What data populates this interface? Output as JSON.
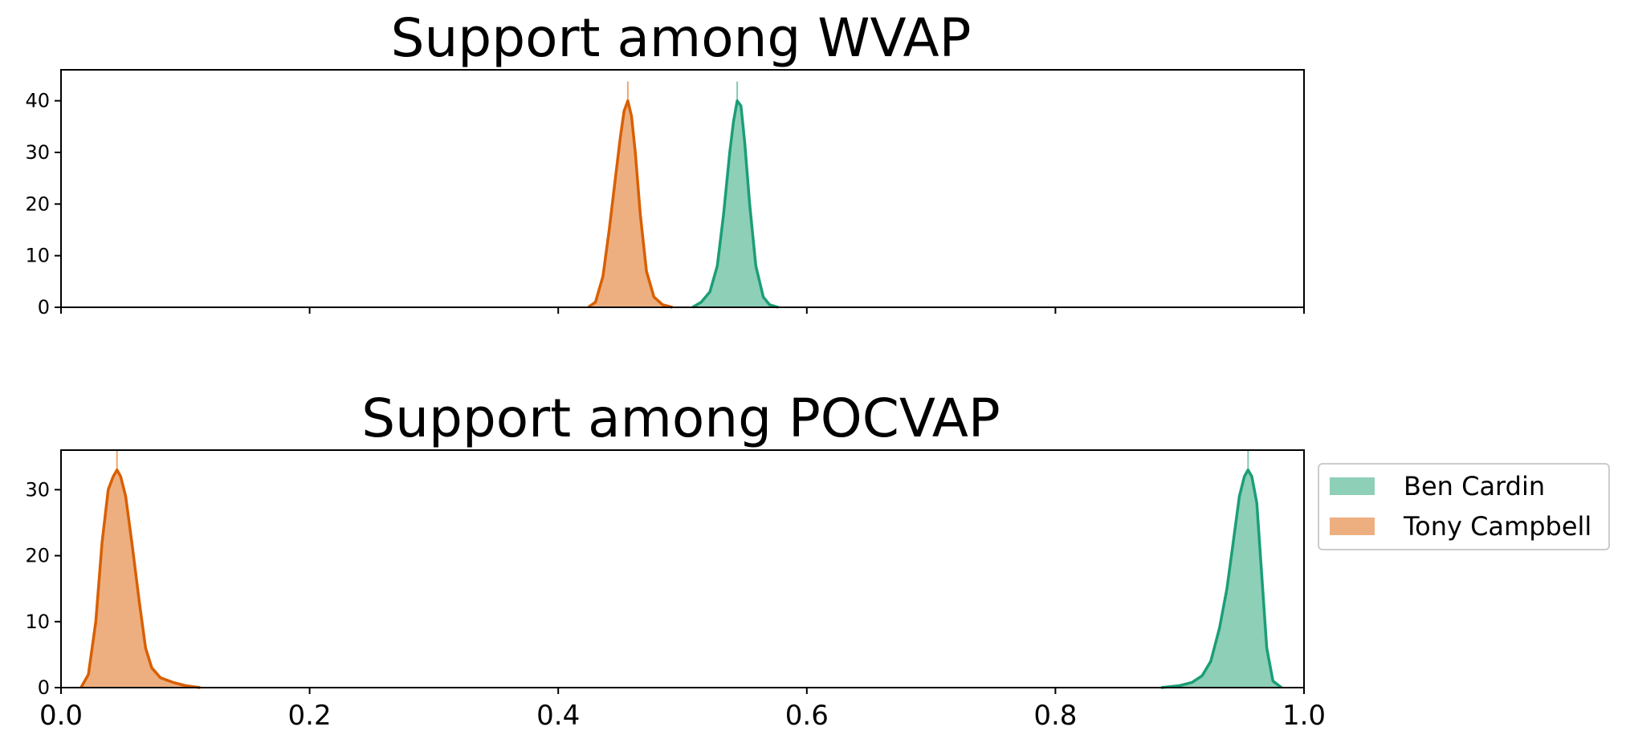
{
  "colors": {
    "ben_cardin_fill": "#8ecfb8",
    "ben_cardin_line": "#1b9e77",
    "tony_campbell_fill": "#edaf80",
    "tony_campbell_line": "#d95f02"
  },
  "legend": {
    "placement": "right of lower panel",
    "items": [
      {
        "label": "Ben Cardin",
        "color_key": "ben_cardin"
      },
      {
        "label": "Tony Campbell",
        "color_key": "tony_campbell"
      }
    ]
  },
  "chart_data": [
    {
      "type": "area",
      "title": "Support among WVAP",
      "xlim": [
        0.0,
        1.0
      ],
      "ylim": [
        0,
        46
      ],
      "x_ticks": [
        "",
        "",
        "",
        "",
        "",
        ""
      ],
      "y_ticks": [
        "0",
        "10",
        "20",
        "30",
        "40"
      ],
      "grid": false,
      "series": [
        {
          "name": "Ben Cardin",
          "color_key": "ben_cardin",
          "x": [
            0.508,
            0.515,
            0.522,
            0.528,
            0.533,
            0.538,
            0.541,
            0.544,
            0.547,
            0.55,
            0.554,
            0.559,
            0.565,
            0.57,
            0.577
          ],
          "y": [
            0,
            1,
            3,
            8,
            18,
            30,
            36,
            40,
            39,
            32,
            20,
            8,
            2,
            0.5,
            0
          ]
        },
        {
          "name": "Tony Campbell",
          "color_key": "tony_campbell",
          "x": [
            0.424,
            0.43,
            0.436,
            0.441,
            0.446,
            0.45,
            0.453,
            0.456,
            0.459,
            0.462,
            0.466,
            0.471,
            0.477,
            0.484,
            0.492
          ],
          "y": [
            0,
            1,
            6,
            15,
            25,
            33,
            38,
            40,
            37,
            30,
            18,
            7,
            2,
            0.5,
            0
          ]
        }
      ]
    },
    {
      "type": "area",
      "title": "Support among POCVAP",
      "xlim": [
        0.0,
        1.0
      ],
      "ylim": [
        0,
        36
      ],
      "x_ticks": [
        "0.0",
        "0.2",
        "0.4",
        "0.6",
        "0.8",
        "1.0"
      ],
      "y_ticks": [
        "0",
        "10",
        "20",
        "30"
      ],
      "grid": false,
      "series": [
        {
          "name": "Ben Cardin",
          "color_key": "ben_cardin",
          "x": [
            0.885,
            0.9,
            0.91,
            0.918,
            0.925,
            0.932,
            0.938,
            0.943,
            0.948,
            0.952,
            0.955,
            0.958,
            0.962,
            0.966,
            0.97,
            0.975,
            0.982
          ],
          "y": [
            0,
            0.3,
            0.8,
            1.8,
            4,
            9,
            15,
            22,
            29,
            32,
            33,
            32,
            28,
            17,
            6,
            1,
            0
          ]
        },
        {
          "name": "Tony Campbell",
          "color_key": "tony_campbell",
          "x": [
            0.016,
            0.022,
            0.028,
            0.033,
            0.038,
            0.042,
            0.045,
            0.048,
            0.052,
            0.057,
            0.063,
            0.068,
            0.073,
            0.08,
            0.09,
            0.1,
            0.112
          ],
          "y": [
            0,
            2,
            10,
            22,
            30,
            32,
            33,
            32,
            29,
            22,
            13,
            6,
            3,
            1.5,
            0.8,
            0.3,
            0
          ]
        }
      ]
    }
  ]
}
